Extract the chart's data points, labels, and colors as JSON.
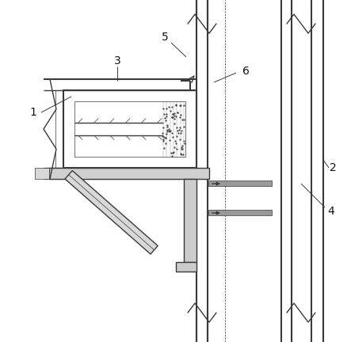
{
  "bg": "#ffffff",
  "lc": "#3a3a3a",
  "lw": 1.0,
  "tlw": 1.5,
  "slw": 0.5,
  "fw": 4.43,
  "fh": 4.32
}
